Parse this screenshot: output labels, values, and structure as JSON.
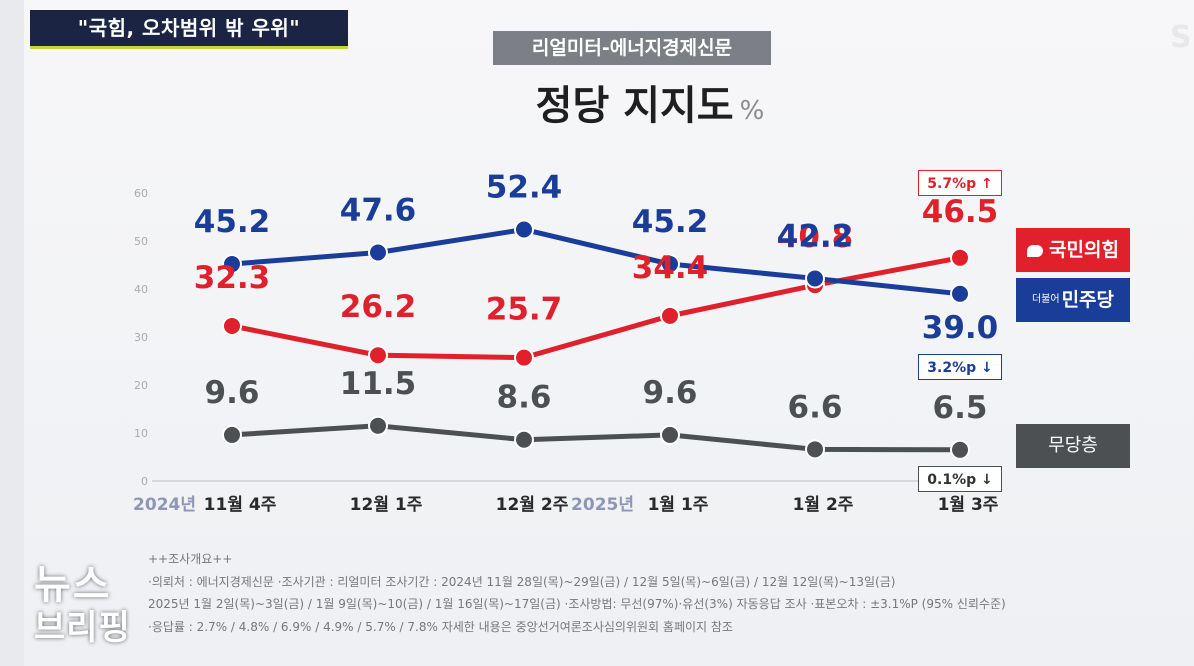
{
  "headline": "\"국힘, 오차범위 밖 우위\"",
  "source": "리얼미터-에너지경제신문",
  "title": "정당 지지도",
  "title_unit": "%",
  "brand": {
    "line1": "뉴스",
    "line2": "브리핑"
  },
  "corner_mark": "S",
  "chart_data": {
    "type": "line",
    "title": "정당 지지도",
    "ylim": [
      0,
      60
    ],
    "yticks": [
      "0",
      "10",
      "20",
      "30",
      "40",
      "50",
      "60"
    ],
    "categories": [
      {
        "year": "2024년",
        "label": "11월 4주"
      },
      {
        "year": "",
        "label": "12월 1주"
      },
      {
        "year": "",
        "label": "12월 2주"
      },
      {
        "year": "2025년",
        "label": "1월 1주"
      },
      {
        "year": "",
        "label": "1월 2주"
      },
      {
        "year": "",
        "label": "1월 3주"
      }
    ],
    "series": [
      {
        "name": "국민의힘",
        "color": "#e0202b",
        "values": [
          32.3,
          26.2,
          25.7,
          34.4,
          40.8,
          46.5
        ],
        "labels": [
          "32.3",
          "26.2",
          "25.7",
          "34.4",
          "40.8",
          "46.5"
        ],
        "change": "5.7%p ↑"
      },
      {
        "name": "민주당",
        "color": "#1b3d9a",
        "values": [
          45.2,
          47.6,
          52.4,
          45.2,
          42.2,
          39.0
        ],
        "labels": [
          "45.2",
          "47.6",
          "52.4",
          "45.2",
          "42.2",
          "39.0"
        ],
        "change": "3.2%p ↓"
      },
      {
        "name": "무당층",
        "color": "#4d5052",
        "values": [
          9.6,
          11.5,
          8.6,
          9.6,
          6.6,
          6.5
        ],
        "labels": [
          "9.6",
          "11.5",
          "8.6",
          "9.6",
          "6.6",
          "6.5"
        ],
        "change": "0.1%p ↓"
      }
    ],
    "grid": false
  },
  "legend": {
    "ppp": "국민의힘",
    "dp_small": "더불어",
    "dp": "민주당",
    "ind": "무당층"
  },
  "notes": [
    "++조사개요++",
    "·의뢰처 : 에너지경제신문   ·조사기관 : 리얼미터      조사기간 : 2024년 11월 28일(목)~29일(금) / 12월 5일(목)~6일(금) / 12월 12일(목)~13일(금)",
    "2025년 1월 2일(목)~3일(금) / 1월 9일(목)~10(금) / 1월 16일(목)~17일(금)        ·조사방법: 무선(97%)·유선(3%) 자동응답 조사      ·표본오차 : ±3.1%P (95% 신뢰수준)",
    "·응답률 : 2.7% / 4.8% / 6.9% / 4.9% / 5.7% / 7.8%      자세한 내용은 중앙선거여론조사심의위원회 홈페이지 참조"
  ]
}
